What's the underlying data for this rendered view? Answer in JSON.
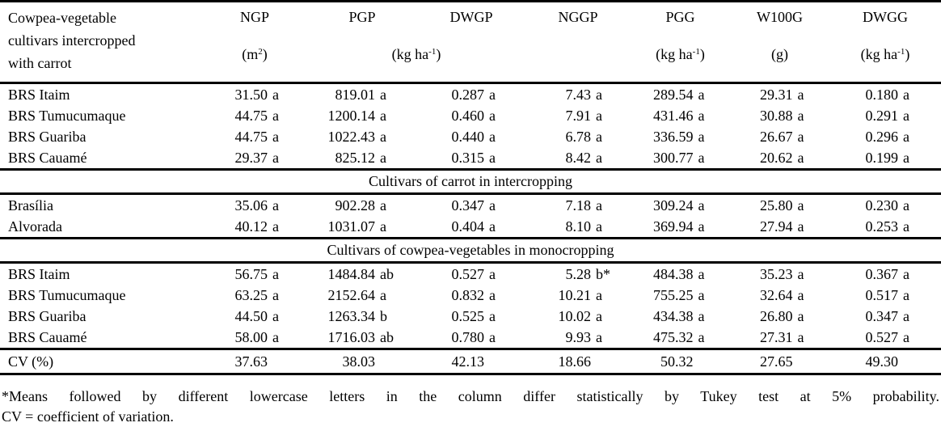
{
  "table": {
    "header": {
      "col1_lines": [
        "Cowpea-vegetable",
        "cultivars intercropped",
        "with carrot"
      ],
      "cols": [
        "NGP",
        "PGP",
        "DWGP",
        "NGGP",
        "PGG",
        "W100G",
        "DWGG"
      ],
      "units": {
        "ngp": {
          "pre": "(m",
          "sup": "2",
          "post": ")"
        },
        "pgp_dwgp": {
          "pre": "(kg ha",
          "sup": "-1",
          "post": ")"
        },
        "pgg": {
          "pre": "(kg ha",
          "sup": "-1",
          "post": ")"
        },
        "w100g": {
          "pre": "(g)",
          "sup": "",
          "post": ""
        },
        "dwgg": {
          "pre": "(kg ha",
          "sup": "-1",
          "post": ")"
        }
      }
    },
    "sections": [
      {
        "header": null,
        "rows": [
          {
            "label": "BRS Itaim",
            "values": [
              "31.50 a",
              "819.01 a",
              "0.287 a",
              "7.43 a",
              "289.54 a",
              "29.31 a",
              "0.180 a"
            ]
          },
          {
            "label": "BRS Tumucumaque",
            "values": [
              "44.75 a",
              "1200.14 a",
              "0.460 a",
              "7.91 a",
              "431.46 a",
              "30.88 a",
              "0.291 a"
            ]
          },
          {
            "label": "BRS Guariba",
            "values": [
              "44.75 a",
              "1022.43 a",
              "0.440 a",
              "6.78 a",
              "336.59 a",
              "26.67 a",
              "0.296 a"
            ]
          },
          {
            "label": "BRS Cauamé",
            "values": [
              "29.37 a",
              "825.12 a",
              "0.315 a",
              "8.42 a",
              "300.77 a",
              "20.62 a",
              "0.199 a"
            ]
          }
        ]
      },
      {
        "header": "Cultivars of carrot in intercropping",
        "rows": [
          {
            "label": "Brasília",
            "values": [
              "35.06 a",
              "902.28 a",
              "0.347 a",
              "7.18 a",
              "309.24 a",
              "25.80 a",
              "0.230 a"
            ]
          },
          {
            "label": "Alvorada",
            "values": [
              "40.12 a",
              "1031.07 a",
              "0.404 a",
              "8.10 a",
              "369.94 a",
              "27.94 a",
              "0.253 a"
            ]
          }
        ]
      },
      {
        "header": "Cultivars of cowpea-vegetables in monocropping",
        "rows": [
          {
            "label": "BRS Itaim",
            "values": [
              "56.75 a",
              "1484.84 ab",
              "0.527 a",
              "5.28 b*",
              "484.38 a",
              "35.23 a",
              "0.367 a"
            ]
          },
          {
            "label": "BRS Tumucumaque",
            "values": [
              "63.25 a",
              "2152.64 a",
              "0.832 a",
              "10.21 a",
              "755.25 a",
              "32.64 a",
              "0.517 a"
            ]
          },
          {
            "label": "BRS Guariba",
            "values": [
              "44.50 a",
              "1263.34 b",
              "0.525 a",
              "10.02 a",
              "434.38 a",
              "26.80 a",
              "0.347 a"
            ]
          },
          {
            "label": "BRS Cauamé",
            "values": [
              "58.00 a",
              "1716.03 ab",
              "0.780 a",
              "9.93 a",
              "475.32 a",
              "27.31 a",
              "0.527 a"
            ]
          }
        ]
      }
    ],
    "cv_row": {
      "label": "CV (%)",
      "values": [
        "37.63",
        "38.03",
        "42.13",
        "18.66",
        "50.32",
        "27.65",
        "49.30"
      ]
    }
  },
  "footnote": {
    "line1": "*Means followed by different lowercase letters in the column differ statistically by Tukey test at 5% probability.",
    "line2": "CV = coefficient of variation."
  }
}
